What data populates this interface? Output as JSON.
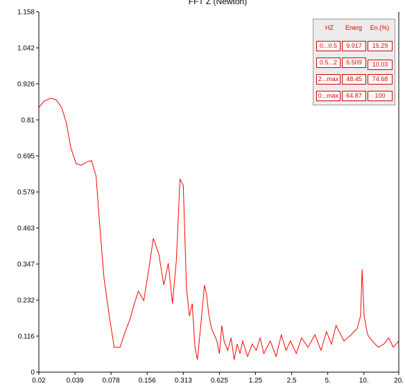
{
  "chart_data": {
    "type": "line",
    "title": "FFT Z (Newton)",
    "xlabel": "",
    "ylabel": "",
    "x_scale": "log2",
    "xlim": [
      0.02,
      20.0
    ],
    "ylim": [
      0,
      1.158
    ],
    "x_tick_labels": [
      "0.02",
      "0.039",
      "0.078",
      "0.156",
      "0.313",
      "0.625",
      "1.25",
      "2.5",
      "5.",
      "10.",
      "20."
    ],
    "y_tick_labels": [
      "0",
      "0.116",
      "0.232",
      "0.347",
      "0.463",
      "0.579",
      "0.695",
      "0.81",
      "0.926",
      "1.042",
      "1.158"
    ],
    "grid": false,
    "line_color": "#ff0000",
    "series": [
      {
        "name": "",
        "x": [
          0.02,
          0.022,
          0.025,
          0.028,
          0.031,
          0.034,
          0.037,
          0.041,
          0.045,
          0.05,
          0.055,
          0.06,
          0.065,
          0.07,
          0.078,
          0.085,
          0.095,
          0.105,
          0.115,
          0.125,
          0.135,
          0.15,
          0.165,
          0.18,
          0.2,
          0.22,
          0.24,
          0.26,
          0.28,
          0.3,
          0.32,
          0.34,
          0.36,
          0.38,
          0.4,
          0.42,
          0.44,
          0.46,
          0.48,
          0.5,
          0.52,
          0.55,
          0.58,
          0.61,
          0.64,
          0.67,
          0.7,
          0.75,
          0.8,
          0.85,
          0.9,
          0.95,
          1.0,
          1.1,
          1.2,
          1.3,
          1.4,
          1.5,
          1.7,
          1.9,
          2.1,
          2.3,
          2.5,
          2.8,
          3.1,
          3.5,
          4.0,
          4.5,
          5.0,
          5.5,
          6.0,
          7.0,
          8.0,
          9.0,
          9.6,
          9.9,
          10.3,
          11.0,
          12.0,
          13.5,
          15.0,
          16.5,
          18.0,
          20.0
        ],
        "values": [
          0.85,
          0.87,
          0.88,
          0.875,
          0.85,
          0.8,
          0.72,
          0.67,
          0.665,
          0.675,
          0.68,
          0.63,
          0.45,
          0.3,
          0.17,
          0.08,
          0.08,
          0.13,
          0.17,
          0.22,
          0.26,
          0.23,
          0.33,
          0.43,
          0.38,
          0.28,
          0.35,
          0.22,
          0.36,
          0.62,
          0.6,
          0.27,
          0.18,
          0.22,
          0.08,
          0.04,
          0.12,
          0.2,
          0.28,
          0.25,
          0.19,
          0.14,
          0.12,
          0.1,
          0.06,
          0.15,
          0.1,
          0.07,
          0.11,
          0.04,
          0.09,
          0.06,
          0.1,
          0.05,
          0.09,
          0.07,
          0.11,
          0.06,
          0.1,
          0.05,
          0.12,
          0.07,
          0.1,
          0.06,
          0.11,
          0.08,
          0.12,
          0.07,
          0.13,
          0.09,
          0.15,
          0.1,
          0.12,
          0.14,
          0.18,
          0.33,
          0.18,
          0.12,
          0.1,
          0.08,
          0.09,
          0.11,
          0.08,
          0.1
        ]
      }
    ]
  },
  "energy_table": {
    "headers": [
      "HZ",
      "Energ",
      "En.(%)"
    ],
    "rows": [
      [
        "0...0.5",
        "9.917",
        "15.29"
      ],
      [
        "0.5...2",
        "6.509",
        "10.03"
      ],
      [
        "2...max",
        "48.45",
        "74.68"
      ],
      [
        "0...max",
        "64.87",
        "100"
      ]
    ]
  }
}
